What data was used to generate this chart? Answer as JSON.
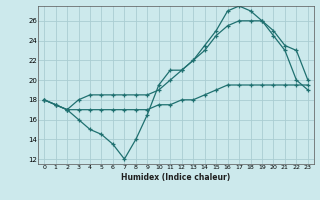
{
  "xlabel": "Humidex (Indice chaleur)",
  "bg_color": "#cce9ec",
  "grid_color": "#aacdd2",
  "line_color": "#1f7070",
  "xlim": [
    -0.5,
    23.5
  ],
  "ylim": [
    11.5,
    27.5
  ],
  "xticks": [
    0,
    1,
    2,
    3,
    4,
    5,
    6,
    7,
    8,
    9,
    10,
    11,
    12,
    13,
    14,
    15,
    16,
    17,
    18,
    19,
    20,
    21,
    22,
    23
  ],
  "yticks": [
    12,
    14,
    16,
    18,
    20,
    22,
    24,
    26
  ],
  "line1_x": [
    0,
    1,
    2,
    3,
    4,
    5,
    6,
    7,
    8,
    9,
    10,
    11,
    12,
    13,
    14,
    15,
    16,
    17,
    18,
    19,
    20,
    21,
    22,
    23
  ],
  "line1_y": [
    18,
    17.5,
    17,
    16,
    15,
    14.5,
    13.5,
    12,
    14,
    16.5,
    19.5,
    21,
    21,
    22,
    23.5,
    25,
    27,
    27.5,
    27,
    26,
    24.5,
    23,
    20,
    19
  ],
  "line2_x": [
    0,
    1,
    2,
    3,
    4,
    5,
    6,
    7,
    8,
    9,
    10,
    11,
    12,
    13,
    14,
    15,
    16,
    17,
    18,
    19,
    20,
    21,
    22,
    23
  ],
  "line2_y": [
    18,
    17.5,
    17,
    18,
    18.5,
    18.5,
    18.5,
    18.5,
    18.5,
    18.5,
    19,
    20,
    21,
    22,
    23,
    24.5,
    25.5,
    26,
    26,
    26,
    25,
    23.5,
    23,
    20
  ],
  "line3_x": [
    0,
    1,
    2,
    3,
    4,
    5,
    6,
    7,
    8,
    9,
    10,
    11,
    12,
    13,
    14,
    15,
    16,
    17,
    18,
    19,
    20,
    21,
    22,
    23
  ],
  "line3_y": [
    18,
    17.5,
    17,
    17,
    17,
    17,
    17,
    17,
    17,
    17,
    17.5,
    17.5,
    18,
    18,
    18.5,
    19,
    19.5,
    19.5,
    19.5,
    19.5,
    19.5,
    19.5,
    19.5,
    19.5
  ]
}
